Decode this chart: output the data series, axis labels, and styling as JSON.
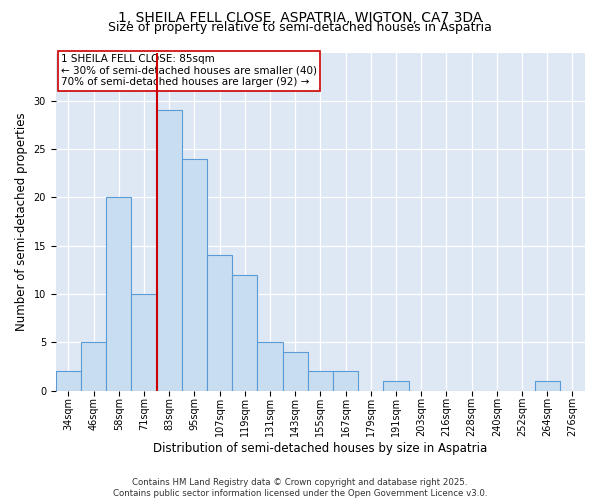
{
  "title_line1": "1, SHEILA FELL CLOSE, ASPATRIA, WIGTON, CA7 3DA",
  "title_line2": "Size of property relative to semi-detached houses in Aspatria",
  "xlabel": "Distribution of semi-detached houses by size in Aspatria",
  "ylabel": "Number of semi-detached properties",
  "categories": [
    "34sqm",
    "46sqm",
    "58sqm",
    "71sqm",
    "83sqm",
    "95sqm",
    "107sqm",
    "119sqm",
    "131sqm",
    "143sqm",
    "155sqm",
    "167sqm",
    "179sqm",
    "191sqm",
    "203sqm",
    "216sqm",
    "228sqm",
    "240sqm",
    "252sqm",
    "264sqm",
    "276sqm"
  ],
  "values": [
    2,
    5,
    20,
    10,
    29,
    24,
    14,
    12,
    5,
    4,
    2,
    2,
    0,
    1,
    0,
    0,
    0,
    0,
    0,
    1,
    0
  ],
  "bar_color": "#c9ddf0",
  "bar_edge_color": "#5b9bd5",
  "property_line_index": 4,
  "annotation_text_line1": "1 SHEILA FELL CLOSE: 85sqm",
  "annotation_text_line2": "← 30% of semi-detached houses are smaller (40)",
  "annotation_text_line3": "70% of semi-detached houses are larger (92) →",
  "red_line_color": "#cc0000",
  "annotation_box_color": "#cc0000",
  "ylim": [
    0,
    35
  ],
  "yticks": [
    0,
    5,
    10,
    15,
    20,
    25,
    30
  ],
  "background_color": "#dde8f4",
  "footer_text": "Contains HM Land Registry data © Crown copyright and database right 2025.\nContains public sector information licensed under the Open Government Licence v3.0.",
  "title_fontsize": 10,
  "subtitle_fontsize": 9,
  "axis_label_fontsize": 8.5,
  "tick_fontsize": 7,
  "annotation_fontsize": 7.5
}
